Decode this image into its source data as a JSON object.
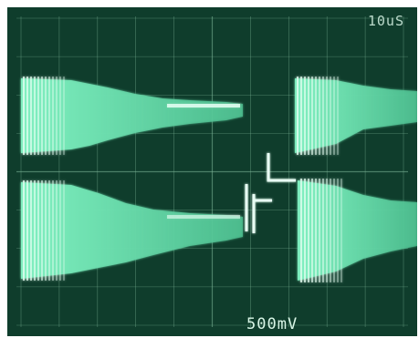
{
  "scope": {
    "timebase_readout": "10uS",
    "voltage_readout": "500mV"
  },
  "colors": {
    "screen_background": "#0f3d2c",
    "graticule": "#7fb89a",
    "trace": "#6fe0b0",
    "trace_bright": "#e8fff4"
  }
}
